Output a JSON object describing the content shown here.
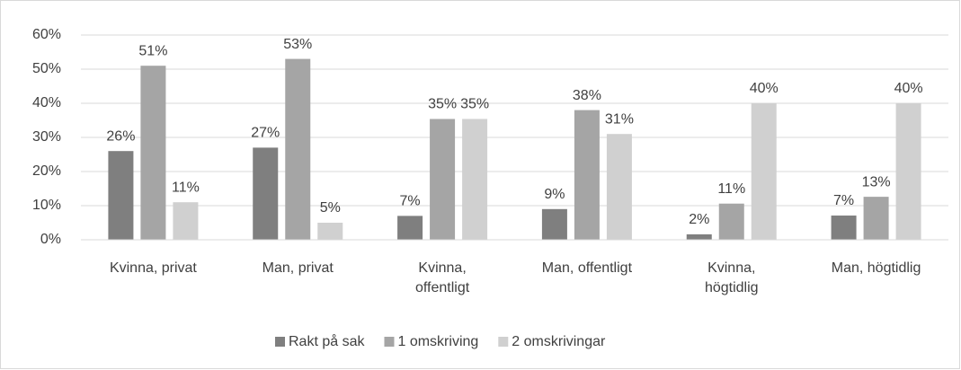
{
  "chart_data": {
    "type": "bar",
    "categories": [
      "Kvinna, privat",
      "Man, privat",
      "Kvinna, offentligt",
      "Man, offentligt",
      "Kvinna, högtidlig",
      "Man, högtidlig"
    ],
    "series": [
      {
        "name": "Rakt på sak",
        "color": "#7f7f7f",
        "values": [
          26,
          27,
          7,
          9,
          1.6,
          7.1
        ],
        "value_labels": [
          "26%",
          "27%",
          "7%",
          "9%",
          "2%",
          "7%"
        ]
      },
      {
        "name": "1 omskriving",
        "color": "#a5a5a5",
        "values": [
          51,
          53,
          35.4,
          38,
          10.6,
          12.6
        ],
        "value_labels": [
          "51%",
          "53%",
          "35%",
          "38%",
          "11%",
          "13%"
        ]
      },
      {
        "name": "2 omskrivingar",
        "color": "#d0d0d0",
        "values": [
          11,
          5,
          35.4,
          31,
          40,
          40
        ],
        "value_labels": [
          "11%",
          "5%",
          "35%",
          "31%",
          "40%",
          "40%"
        ]
      }
    ],
    "ylim": [
      0,
      60
    ],
    "yticks": [
      {
        "value": 0,
        "label": "0%"
      },
      {
        "value": 10,
        "label": "10%"
      },
      {
        "value": 20,
        "label": "20%"
      },
      {
        "value": 30,
        "label": "30%"
      },
      {
        "value": 40,
        "label": "40%"
      },
      {
        "value": 50,
        "label": "50%"
      },
      {
        "value": 60,
        "label": "60%"
      }
    ],
    "grid": true,
    "legend": "bottom"
  }
}
